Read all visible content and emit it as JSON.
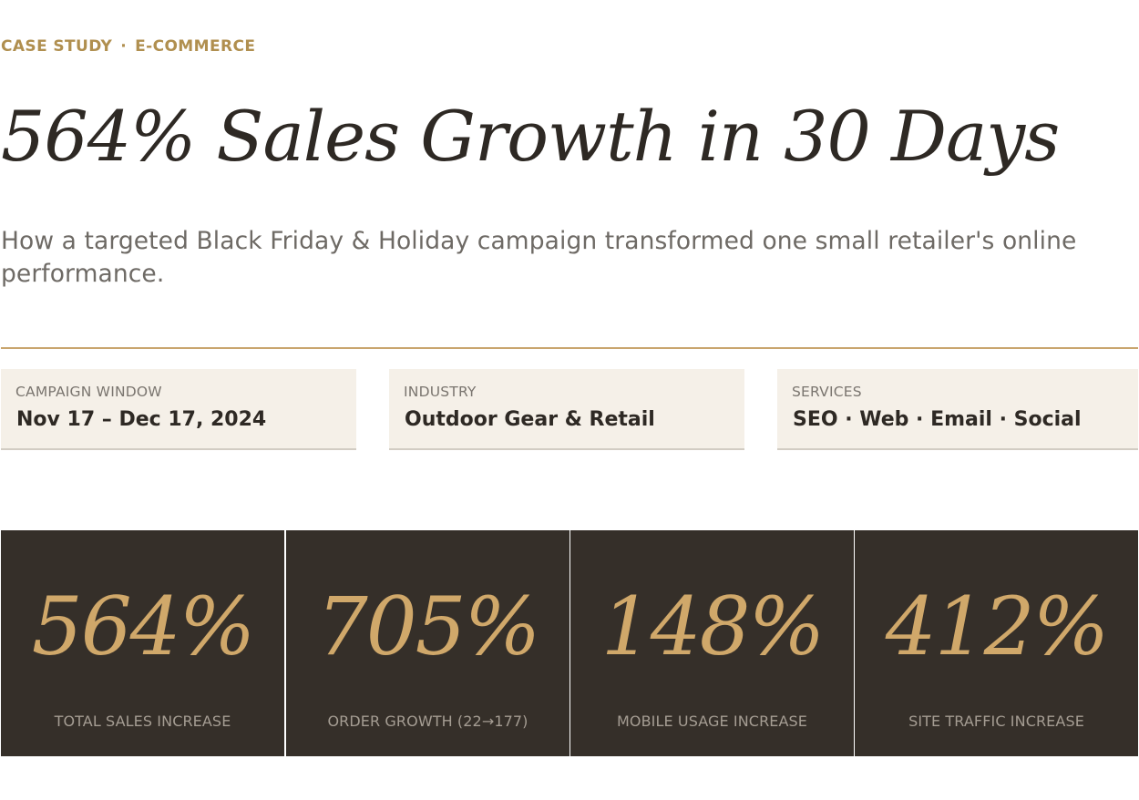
{
  "eyebrow": {
    "category": "CASE STUDY",
    "separator": "·",
    "industry": "E-COMMERCE"
  },
  "title": "564% Sales Growth in 30 Days",
  "subtitle": "How a targeted Black Friday & Holiday campaign transformed one small retailer's online performance.",
  "meta": [
    {
      "label": "CAMPAIGN WINDOW",
      "value": "Nov 17 – Dec 17, 2024"
    },
    {
      "label": "INDUSTRY",
      "value": "Outdoor Gear & Retail"
    },
    {
      "label": "SERVICES",
      "value": "SEO · Web · Email · Social"
    }
  ],
  "stats": [
    {
      "value": "564%",
      "label": "TOTAL SALES INCREASE"
    },
    {
      "value": "705%",
      "label": "ORDER GROWTH (22→177)"
    },
    {
      "value": "148%",
      "label": "MOBILE USAGE INCREASE"
    },
    {
      "value": "412%",
      "label": "SITE TRAFFIC INCREASE"
    }
  ],
  "colors": {
    "accent_gold": "#b08f4f",
    "stat_gold": "#d0a86a",
    "dark_panel": "#352f29",
    "meta_background": "#f5f0e8",
    "rule": "#c9a56e",
    "heading_text": "#2e2924"
  }
}
